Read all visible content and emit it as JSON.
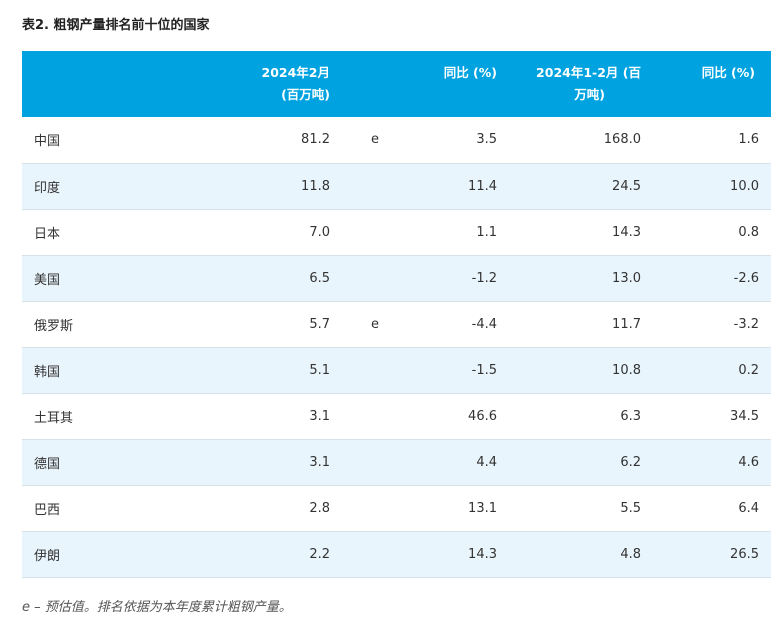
{
  "caption": "表2. 粗钢产量排名前十位的国家",
  "headers": {
    "country": "",
    "feb_line1": "2024年2月",
    "feb_line2": "(百万吨)",
    "flag": "",
    "feb_yoy": "同比 (%)",
    "ytd_line1": "2024年1-2月 (百",
    "ytd_line2": "万吨)",
    "ytd_yoy": "同比 (%)"
  },
  "rows": [
    {
      "country": "中国",
      "feb": "81.2",
      "flag": "e",
      "feb_yoy": "3.5",
      "ytd": "168.0",
      "ytd_yoy": "1.6"
    },
    {
      "country": "印度",
      "feb": "11.8",
      "flag": "",
      "feb_yoy": "11.4",
      "ytd": "24.5",
      "ytd_yoy": "10.0"
    },
    {
      "country": "日本",
      "feb": "7.0",
      "flag": "",
      "feb_yoy": "1.1",
      "ytd": "14.3",
      "ytd_yoy": "0.8"
    },
    {
      "country": "美国",
      "feb": "6.5",
      "flag": "",
      "feb_yoy": "-1.2",
      "ytd": "13.0",
      "ytd_yoy": "-2.6"
    },
    {
      "country": "俄罗斯",
      "feb": "5.7",
      "flag": "e",
      "feb_yoy": "-4.4",
      "ytd": "11.7",
      "ytd_yoy": "-3.2"
    },
    {
      "country": "韩国",
      "feb": "5.1",
      "flag": "",
      "feb_yoy": "-1.5",
      "ytd": "10.8",
      "ytd_yoy": "0.2"
    },
    {
      "country": "土耳其",
      "feb": "3.1",
      "flag": "",
      "feb_yoy": "46.6",
      "ytd": "6.3",
      "ytd_yoy": "34.5"
    },
    {
      "country": "德国",
      "feb": "3.1",
      "flag": "",
      "feb_yoy": "4.4",
      "ytd": "6.2",
      "ytd_yoy": "4.6"
    },
    {
      "country": "巴西",
      "feb": "2.8",
      "flag": "",
      "feb_yoy": "13.1",
      "ytd": "5.5",
      "ytd_yoy": "6.4"
    },
    {
      "country": "伊朗",
      "feb": "2.2",
      "flag": "",
      "feb_yoy": "14.3",
      "ytd": "4.8",
      "ytd_yoy": "26.5"
    }
  ],
  "footnote": "e – 预估值。排名依据为本年度累计粗钢产量。",
  "colors": {
    "header_bg": "#00a3e0",
    "stripe_bg": "#e8f5fc"
  }
}
